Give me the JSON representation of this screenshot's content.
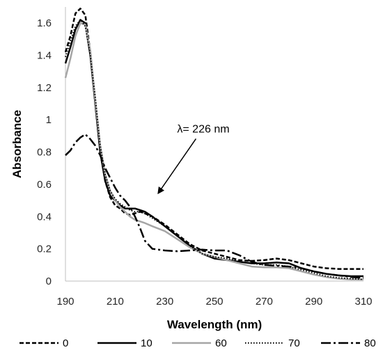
{
  "chart_data": {
    "type": "line",
    "title": "",
    "xlabel": "Wavelength (nm)",
    "ylabel": "Absorbance",
    "xlim": [
      190,
      310
    ],
    "ylim": [
      0,
      1.7
    ],
    "x_ticks": [
      190,
      210,
      230,
      250,
      270,
      290,
      310
    ],
    "y_ticks": [
      0,
      0.2,
      0.4,
      0.6,
      0.8,
      1,
      1.2,
      1.4,
      1.6
    ],
    "y_tick_labels": [
      "0",
      "0.2",
      "0.4",
      "0.6",
      "0.8",
      "1",
      "1.2",
      "1.4",
      "1.6"
    ],
    "grid": false,
    "legend_position": "bottom",
    "annotation": {
      "text": "λ= 226  nm",
      "x": 226,
      "y": 0.52
    },
    "series": [
      {
        "name": "0",
        "color": "#000000",
        "dash": "short-dash",
        "points": [
          [
            190,
            1.42
          ],
          [
            192,
            1.52
          ],
          [
            194,
            1.66
          ],
          [
            196,
            1.69
          ],
          [
            198,
            1.65
          ],
          [
            200,
            1.42
          ],
          [
            202,
            1.1
          ],
          [
            204,
            0.8
          ],
          [
            206,
            0.62
          ],
          [
            208,
            0.52
          ],
          [
            210,
            0.47
          ],
          [
            212,
            0.45
          ],
          [
            214,
            0.42
          ],
          [
            216,
            0.41
          ],
          [
            218,
            0.42
          ],
          [
            220,
            0.43
          ],
          [
            222,
            0.42
          ],
          [
            225,
            0.4
          ],
          [
            230,
            0.35
          ],
          [
            235,
            0.29
          ],
          [
            240,
            0.23
          ],
          [
            245,
            0.19
          ],
          [
            250,
            0.17
          ],
          [
            255,
            0.15
          ],
          [
            260,
            0.13
          ],
          [
            265,
            0.125
          ],
          [
            270,
            0.13
          ],
          [
            275,
            0.14
          ],
          [
            280,
            0.13
          ],
          [
            285,
            0.11
          ],
          [
            290,
            0.09
          ],
          [
            295,
            0.08
          ],
          [
            300,
            0.075
          ],
          [
            305,
            0.075
          ],
          [
            310,
            0.075
          ]
        ]
      },
      {
        "name": "10",
        "color": "#000000",
        "dash": "solid",
        "points": [
          [
            190,
            1.35
          ],
          [
            192,
            1.45
          ],
          [
            194,
            1.56
          ],
          [
            196,
            1.62
          ],
          [
            198,
            1.6
          ],
          [
            200,
            1.4
          ],
          [
            202,
            1.1
          ],
          [
            204,
            0.8
          ],
          [
            206,
            0.62
          ],
          [
            208,
            0.53
          ],
          [
            210,
            0.5
          ],
          [
            212,
            0.47
          ],
          [
            214,
            0.45
          ],
          [
            216,
            0.45
          ],
          [
            218,
            0.45
          ],
          [
            220,
            0.44
          ],
          [
            222,
            0.43
          ],
          [
            225,
            0.4
          ],
          [
            230,
            0.34
          ],
          [
            235,
            0.28
          ],
          [
            240,
            0.22
          ],
          [
            245,
            0.17
          ],
          [
            250,
            0.14
          ],
          [
            255,
            0.13
          ],
          [
            260,
            0.12
          ],
          [
            265,
            0.11
          ],
          [
            270,
            0.11
          ],
          [
            275,
            0.115
          ],
          [
            280,
            0.11
          ],
          [
            285,
            0.08
          ],
          [
            290,
            0.06
          ],
          [
            295,
            0.045
          ],
          [
            300,
            0.035
          ],
          [
            305,
            0.03
          ],
          [
            310,
            0.03
          ]
        ]
      },
      {
        "name": "60",
        "color": "#a6a6a6",
        "dash": "solid",
        "points": [
          [
            190,
            1.26
          ],
          [
            192,
            1.38
          ],
          [
            194,
            1.52
          ],
          [
            196,
            1.6
          ],
          [
            198,
            1.59
          ],
          [
            200,
            1.43
          ],
          [
            202,
            1.12
          ],
          [
            204,
            0.84
          ],
          [
            206,
            0.66
          ],
          [
            208,
            0.56
          ],
          [
            210,
            0.5
          ],
          [
            212,
            0.46
          ],
          [
            214,
            0.43
          ],
          [
            216,
            0.4
          ],
          [
            218,
            0.38
          ],
          [
            220,
            0.37
          ],
          [
            222,
            0.36
          ],
          [
            225,
            0.34
          ],
          [
            230,
            0.31
          ],
          [
            235,
            0.26
          ],
          [
            240,
            0.21
          ],
          [
            245,
            0.17
          ],
          [
            250,
            0.15
          ],
          [
            255,
            0.13
          ],
          [
            260,
            0.11
          ],
          [
            265,
            0.09
          ],
          [
            270,
            0.085
          ],
          [
            275,
            0.085
          ],
          [
            280,
            0.08
          ],
          [
            285,
            0.06
          ],
          [
            290,
            0.04
          ],
          [
            295,
            0.025
          ],
          [
            300,
            0.015
          ],
          [
            305,
            0.01
          ],
          [
            310,
            0.01
          ]
        ]
      },
      {
        "name": "70",
        "color": "#000000",
        "dash": "dotted",
        "points": [
          [
            190,
            1.39
          ],
          [
            192,
            1.49
          ],
          [
            194,
            1.58
          ],
          [
            196,
            1.62
          ],
          [
            198,
            1.58
          ],
          [
            200,
            1.4
          ],
          [
            202,
            1.14
          ],
          [
            204,
            0.84
          ],
          [
            206,
            0.66
          ],
          [
            208,
            0.56
          ],
          [
            210,
            0.51
          ],
          [
            212,
            0.48
          ],
          [
            214,
            0.46
          ],
          [
            216,
            0.44
          ],
          [
            218,
            0.43
          ],
          [
            220,
            0.43
          ],
          [
            222,
            0.42
          ],
          [
            225,
            0.39
          ],
          [
            230,
            0.34
          ],
          [
            235,
            0.28
          ],
          [
            240,
            0.22
          ],
          [
            245,
            0.17
          ],
          [
            250,
            0.15
          ],
          [
            255,
            0.14
          ],
          [
            260,
            0.12
          ],
          [
            265,
            0.11
          ],
          [
            270,
            0.1
          ],
          [
            275,
            0.1
          ],
          [
            280,
            0.09
          ],
          [
            285,
            0.07
          ],
          [
            290,
            0.05
          ],
          [
            295,
            0.03
          ],
          [
            300,
            0.02
          ],
          [
            305,
            0.015
          ],
          [
            310,
            0.01
          ]
        ]
      },
      {
        "name": "80",
        "color": "#000000",
        "dash": "long-dash",
        "points": [
          [
            190,
            0.78
          ],
          [
            192,
            0.81
          ],
          [
            194,
            0.86
          ],
          [
            196,
            0.89
          ],
          [
            198,
            0.91
          ],
          [
            200,
            0.88
          ],
          [
            202,
            0.84
          ],
          [
            204,
            0.78
          ],
          [
            206,
            0.7
          ],
          [
            208,
            0.64
          ],
          [
            210,
            0.58
          ],
          [
            212,
            0.53
          ],
          [
            214,
            0.5
          ],
          [
            216,
            0.46
          ],
          [
            218,
            0.4
          ],
          [
            220,
            0.33
          ],
          [
            222,
            0.25
          ],
          [
            225,
            0.2
          ],
          [
            230,
            0.19
          ],
          [
            235,
            0.185
          ],
          [
            240,
            0.19
          ],
          [
            245,
            0.195
          ],
          [
            250,
            0.19
          ],
          [
            255,
            0.19
          ],
          [
            260,
            0.16
          ],
          [
            265,
            0.12
          ],
          [
            270,
            0.1
          ],
          [
            275,
            0.095
          ],
          [
            280,
            0.09
          ],
          [
            285,
            0.08
          ],
          [
            290,
            0.06
          ],
          [
            295,
            0.045
          ],
          [
            300,
            0.035
          ],
          [
            305,
            0.025
          ],
          [
            310,
            0.02
          ]
        ]
      }
    ]
  }
}
